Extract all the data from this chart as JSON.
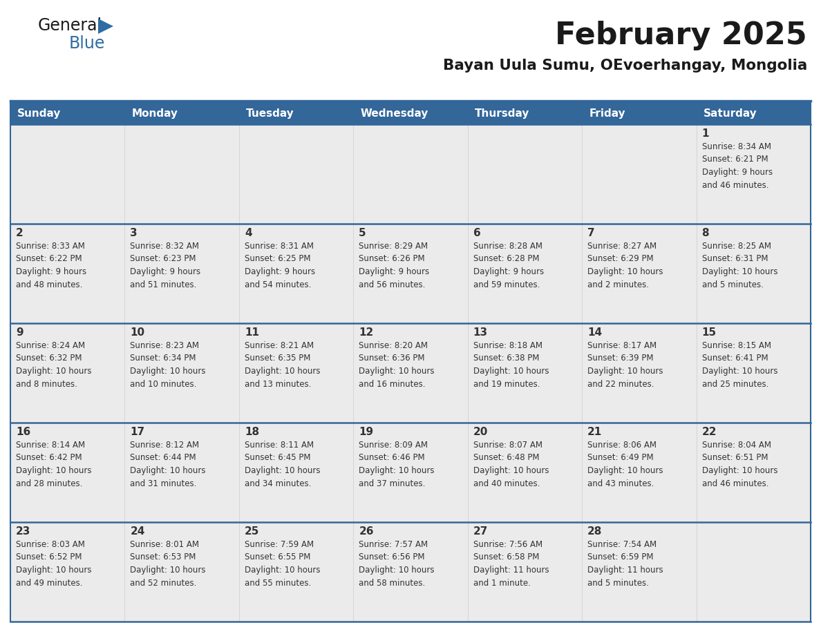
{
  "title": "February 2025",
  "subtitle": "Bayan Uula Sumu, OEvoerhangay, Mongolia",
  "header_bg": "#336699",
  "header_text": "#FFFFFF",
  "cell_bg": "#EBEBEB",
  "row_sep_color": "#336699",
  "day_number_color": "#333333",
  "text_color": "#333333",
  "days_of_week": [
    "Sunday",
    "Monday",
    "Tuesday",
    "Wednesday",
    "Thursday",
    "Friday",
    "Saturday"
  ],
  "calendar": [
    [
      null,
      null,
      null,
      null,
      null,
      null,
      1
    ],
    [
      2,
      3,
      4,
      5,
      6,
      7,
      8
    ],
    [
      9,
      10,
      11,
      12,
      13,
      14,
      15
    ],
    [
      16,
      17,
      18,
      19,
      20,
      21,
      22
    ],
    [
      23,
      24,
      25,
      26,
      27,
      28,
      null
    ]
  ],
  "cell_data": {
    "1": {
      "sunrise": "8:34 AM",
      "sunset": "6:21 PM",
      "daylight_h": "9 hours",
      "daylight_m": "and 46 minutes."
    },
    "2": {
      "sunrise": "8:33 AM",
      "sunset": "6:22 PM",
      "daylight_h": "9 hours",
      "daylight_m": "and 48 minutes."
    },
    "3": {
      "sunrise": "8:32 AM",
      "sunset": "6:23 PM",
      "daylight_h": "9 hours",
      "daylight_m": "and 51 minutes."
    },
    "4": {
      "sunrise": "8:31 AM",
      "sunset": "6:25 PM",
      "daylight_h": "9 hours",
      "daylight_m": "and 54 minutes."
    },
    "5": {
      "sunrise": "8:29 AM",
      "sunset": "6:26 PM",
      "daylight_h": "9 hours",
      "daylight_m": "and 56 minutes."
    },
    "6": {
      "sunrise": "8:28 AM",
      "sunset": "6:28 PM",
      "daylight_h": "9 hours",
      "daylight_m": "and 59 minutes."
    },
    "7": {
      "sunrise": "8:27 AM",
      "sunset": "6:29 PM",
      "daylight_h": "10 hours",
      "daylight_m": "and 2 minutes."
    },
    "8": {
      "sunrise": "8:25 AM",
      "sunset": "6:31 PM",
      "daylight_h": "10 hours",
      "daylight_m": "and 5 minutes."
    },
    "9": {
      "sunrise": "8:24 AM",
      "sunset": "6:32 PM",
      "daylight_h": "10 hours",
      "daylight_m": "and 8 minutes."
    },
    "10": {
      "sunrise": "8:23 AM",
      "sunset": "6:34 PM",
      "daylight_h": "10 hours",
      "daylight_m": "and 10 minutes."
    },
    "11": {
      "sunrise": "8:21 AM",
      "sunset": "6:35 PM",
      "daylight_h": "10 hours",
      "daylight_m": "and 13 minutes."
    },
    "12": {
      "sunrise": "8:20 AM",
      "sunset": "6:36 PM",
      "daylight_h": "10 hours",
      "daylight_m": "and 16 minutes."
    },
    "13": {
      "sunrise": "8:18 AM",
      "sunset": "6:38 PM",
      "daylight_h": "10 hours",
      "daylight_m": "and 19 minutes."
    },
    "14": {
      "sunrise": "8:17 AM",
      "sunset": "6:39 PM",
      "daylight_h": "10 hours",
      "daylight_m": "and 22 minutes."
    },
    "15": {
      "sunrise": "8:15 AM",
      "sunset": "6:41 PM",
      "daylight_h": "10 hours",
      "daylight_m": "and 25 minutes."
    },
    "16": {
      "sunrise": "8:14 AM",
      "sunset": "6:42 PM",
      "daylight_h": "10 hours",
      "daylight_m": "and 28 minutes."
    },
    "17": {
      "sunrise": "8:12 AM",
      "sunset": "6:44 PM",
      "daylight_h": "10 hours",
      "daylight_m": "and 31 minutes."
    },
    "18": {
      "sunrise": "8:11 AM",
      "sunset": "6:45 PM",
      "daylight_h": "10 hours",
      "daylight_m": "and 34 minutes."
    },
    "19": {
      "sunrise": "8:09 AM",
      "sunset": "6:46 PM",
      "daylight_h": "10 hours",
      "daylight_m": "and 37 minutes."
    },
    "20": {
      "sunrise": "8:07 AM",
      "sunset": "6:48 PM",
      "daylight_h": "10 hours",
      "daylight_m": "and 40 minutes."
    },
    "21": {
      "sunrise": "8:06 AM",
      "sunset": "6:49 PM",
      "daylight_h": "10 hours",
      "daylight_m": "and 43 minutes."
    },
    "22": {
      "sunrise": "8:04 AM",
      "sunset": "6:51 PM",
      "daylight_h": "10 hours",
      "daylight_m": "and 46 minutes."
    },
    "23": {
      "sunrise": "8:03 AM",
      "sunset": "6:52 PM",
      "daylight_h": "10 hours",
      "daylight_m": "and 49 minutes."
    },
    "24": {
      "sunrise": "8:01 AM",
      "sunset": "6:53 PM",
      "daylight_h": "10 hours",
      "daylight_m": "and 52 minutes."
    },
    "25": {
      "sunrise": "7:59 AM",
      "sunset": "6:55 PM",
      "daylight_h": "10 hours",
      "daylight_m": "and 55 minutes."
    },
    "26": {
      "sunrise": "7:57 AM",
      "sunset": "6:56 PM",
      "daylight_h": "10 hours",
      "daylight_m": "and 58 minutes."
    },
    "27": {
      "sunrise": "7:56 AM",
      "sunset": "6:58 PM",
      "daylight_h": "11 hours",
      "daylight_m": "and 1 minute."
    },
    "28": {
      "sunrise": "7:54 AM",
      "sunset": "6:59 PM",
      "daylight_h": "11 hours",
      "daylight_m": "and 5 minutes."
    }
  },
  "logo_triangle_color": "#2E6DA4",
  "title_color": "#1a1a1a",
  "subtitle_color": "#1a1a1a"
}
